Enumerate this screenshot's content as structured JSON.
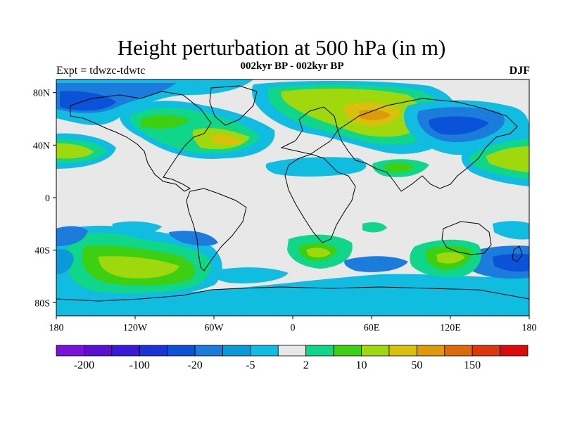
{
  "title": "Height perturbation at 500 hPa (in m)",
  "subtitle": "002kyr BP - 002kyr BP",
  "left_label": "Expt = tdwzc-tdwtc",
  "right_label": "DJF",
  "lat_ticks": [
    "80N",
    "40N",
    "0",
    "40S",
    "80S"
  ],
  "lon_ticks": [
    "180",
    "120W",
    "60W",
    "0",
    "60E",
    "120E",
    "180"
  ],
  "colorbar": {
    "colors": [
      "#7a12d9",
      "#5c0fd0",
      "#3a1ad8",
      "#1a34d6",
      "#0a52d8",
      "#1c7cdc",
      "#0a9ad8",
      "#10bce0",
      "#e8e8e8",
      "#10d68a",
      "#3ccf12",
      "#a0d80e",
      "#d8c00c",
      "#dc9a0a",
      "#dc6a0a",
      "#dc380c",
      "#dc0a0a"
    ],
    "labels": [
      "-200",
      "-100",
      "-20",
      "-5",
      "2",
      "10",
      "50",
      "150"
    ]
  },
  "colors": {
    "background_field": "#e8e8e8",
    "coast": "#000000"
  }
}
